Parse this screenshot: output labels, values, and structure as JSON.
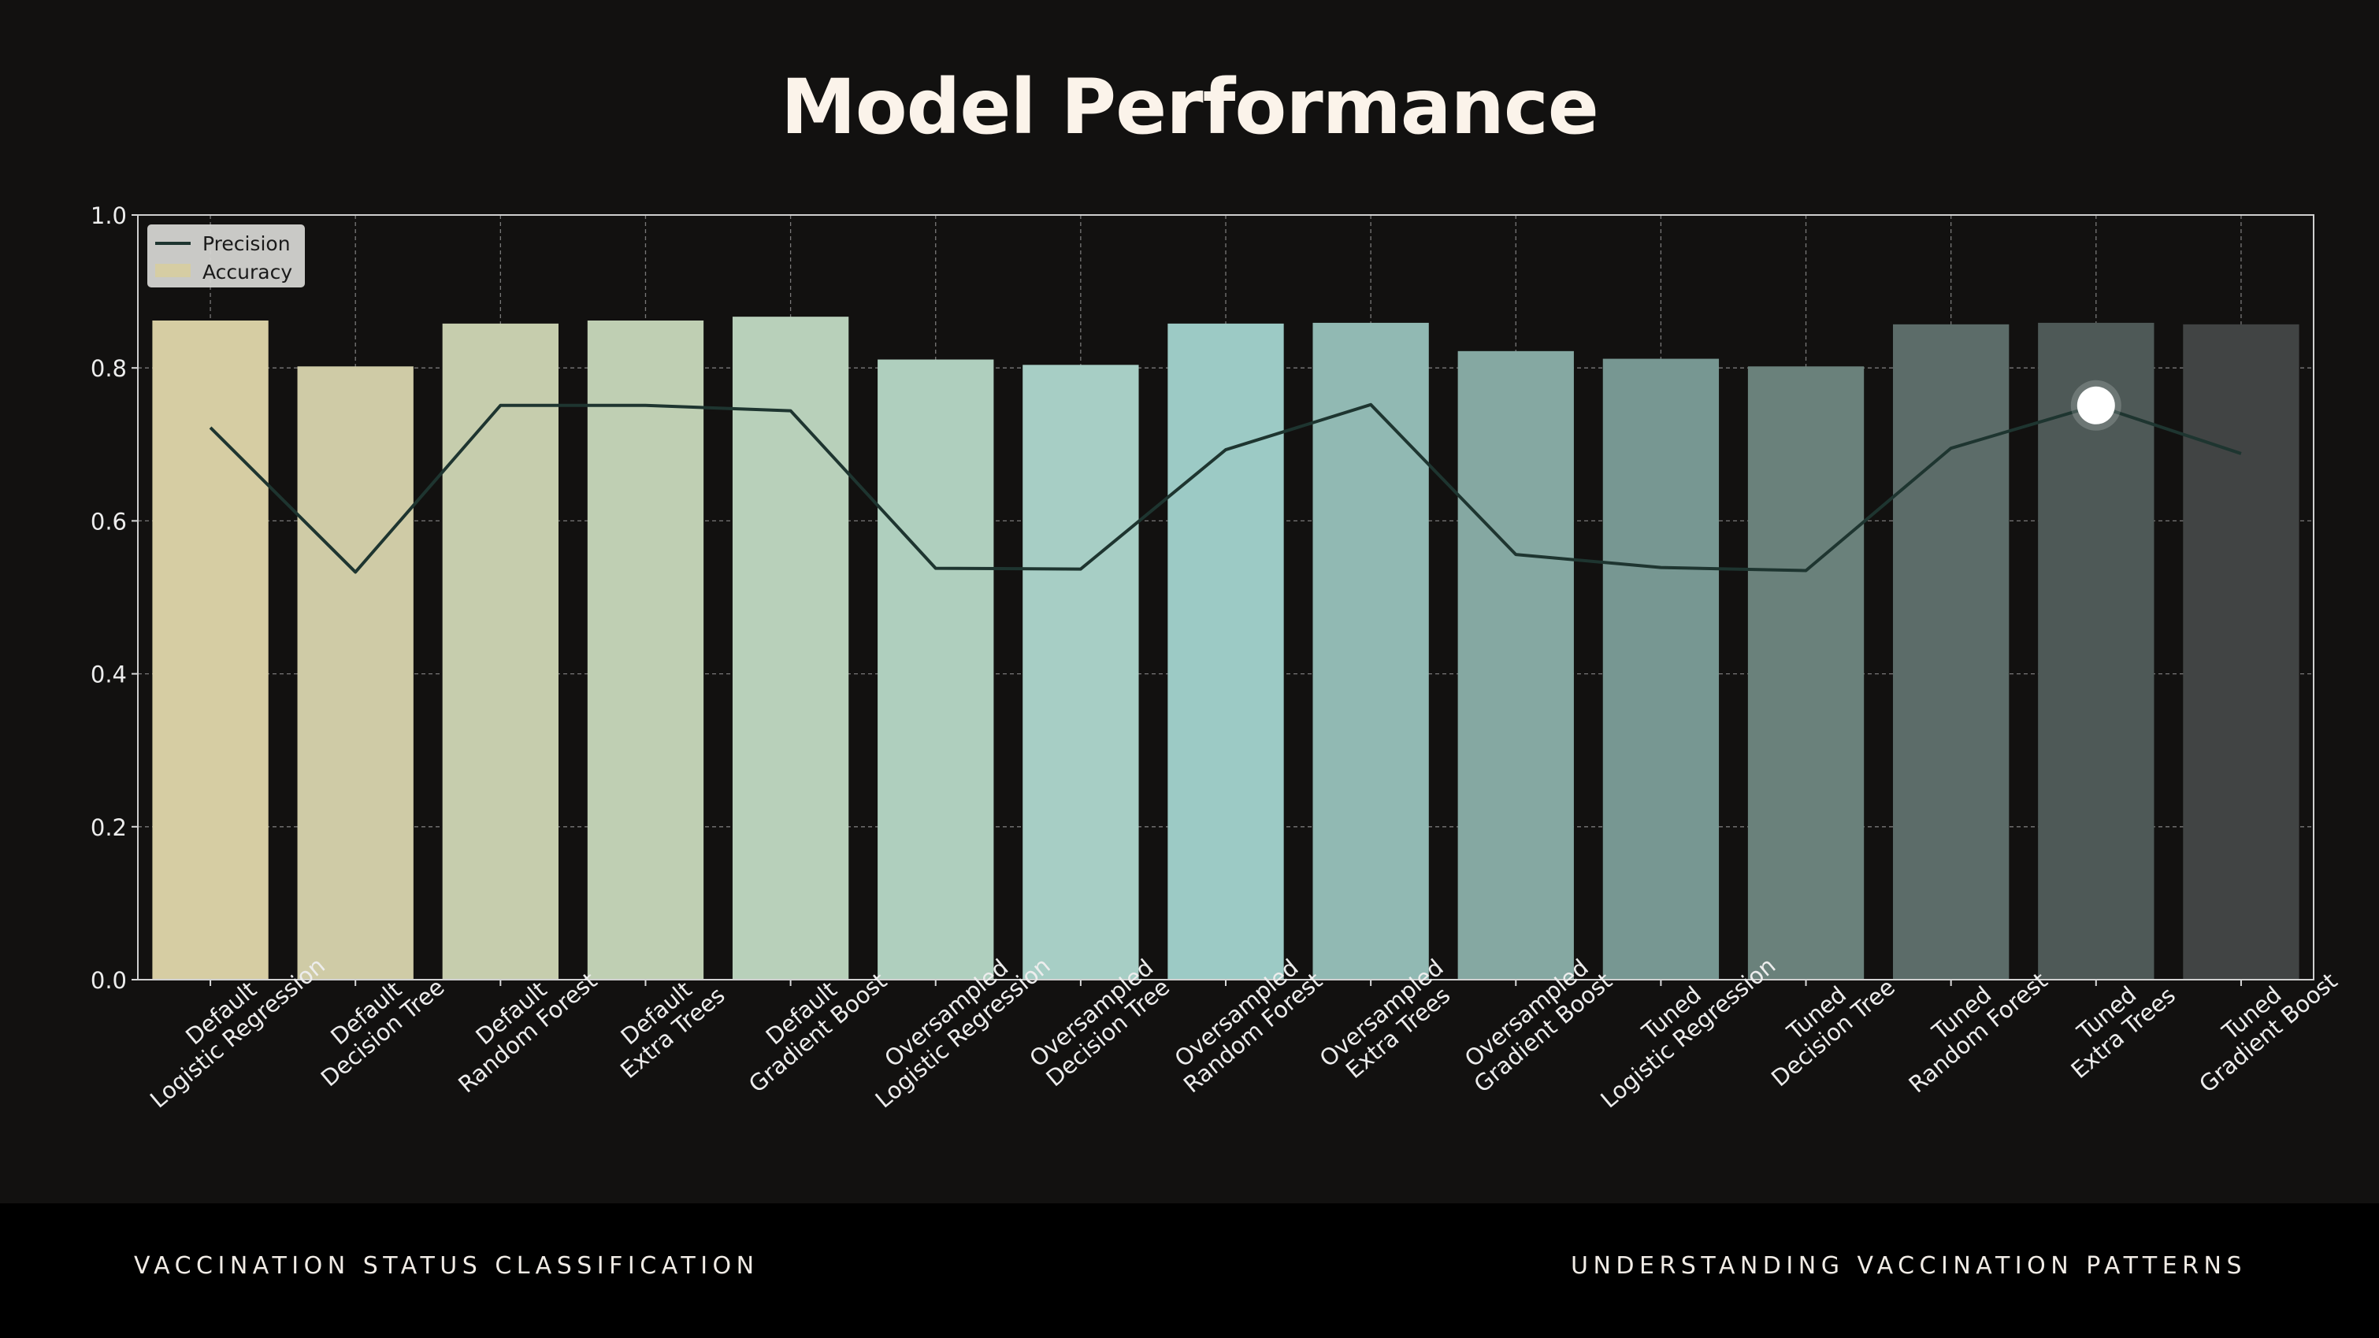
{
  "slide": {
    "title": "Model Performance"
  },
  "footer": {
    "left": "VACCINATION STATUS CLASSIFICATION",
    "right": "UNDERSTANDING VACCINATION PATTERNS"
  },
  "chart_data": {
    "type": "bar",
    "categories": [
      [
        "Default",
        "Logistic Regression"
      ],
      [
        "Default",
        "Decision Tree"
      ],
      [
        "Default",
        "Random Forest"
      ],
      [
        "Default",
        "Extra Trees"
      ],
      [
        "Default",
        "Gradient Boost"
      ],
      [
        "Oversampled",
        "Logistic Regression"
      ],
      [
        "Oversampled",
        "Decision Tree"
      ],
      [
        "Oversampled",
        "Random Forest"
      ],
      [
        "Oversampled",
        "Extra Trees"
      ],
      [
        "Oversampled",
        "Gradient Boost"
      ],
      [
        "Tuned",
        "Logistic Regression"
      ],
      [
        "Tuned",
        "Decision Tree"
      ],
      [
        "Tuned",
        "Random Forest"
      ],
      [
        "Tuned",
        "Extra Trees"
      ],
      [
        "Tuned",
        "Gradient Boost"
      ]
    ],
    "series": [
      {
        "name": "Accuracy",
        "kind": "bar",
        "values": [
          0.862,
          0.802,
          0.858,
          0.862,
          0.867,
          0.811,
          0.804,
          0.858,
          0.859,
          0.822,
          0.812,
          0.802,
          0.857,
          0.859,
          0.857
        ]
      },
      {
        "name": "Precision",
        "kind": "line",
        "color": "#1e3530",
        "values": [
          0.722,
          0.533,
          0.751,
          0.751,
          0.744,
          0.538,
          0.537,
          0.693,
          0.752,
          0.556,
          0.539,
          0.535,
          0.695,
          0.751,
          0.688
        ]
      }
    ],
    "bar_colors": [
      "#d6cda3",
      "#cfcba6",
      "#c6cdad",
      "#bfcfb3",
      "#b8d0ba",
      "#afcfbe",
      "#a7cec5",
      "#9ccac5",
      "#91b9b3",
      "#85a8a2",
      "#779792",
      "#6a817b",
      "#5c6c69",
      "#4e5957",
      "#414444"
    ],
    "highlight": {
      "category_index": 13,
      "series": "Precision"
    },
    "yticks": [
      "0.0",
      "0.2",
      "0.4",
      "0.6",
      "0.8",
      "1.0"
    ],
    "ylim": [
      0,
      1
    ],
    "grid": true,
    "legend": {
      "position": "top-left",
      "items": [
        "Precision",
        "Accuracy"
      ]
    }
  }
}
